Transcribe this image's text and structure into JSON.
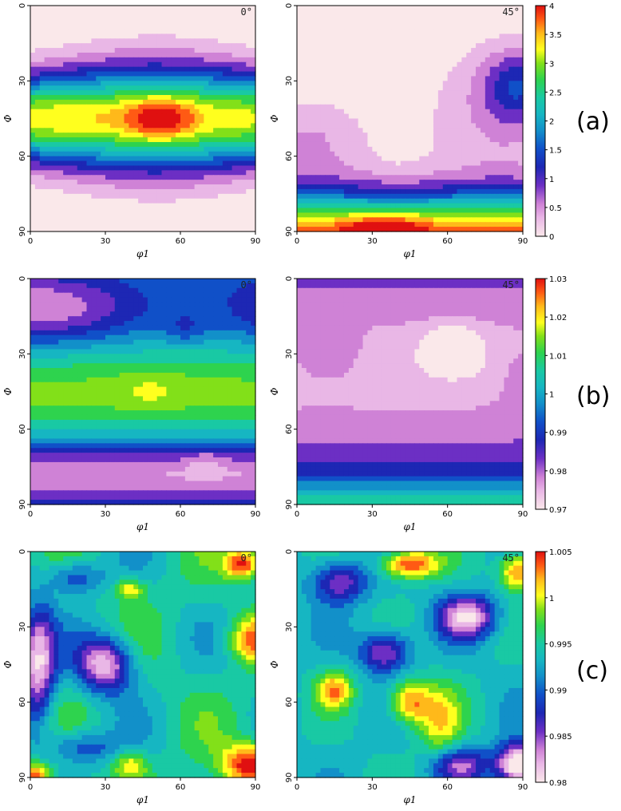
{
  "chart_data": [
    {
      "type": "heatmap",
      "row": "(a)",
      "panel_label": "0°",
      "xlabel": "φ1",
      "ylabel": "Φ",
      "xlim": [
        0,
        90
      ],
      "ylim": [
        0,
        90
      ],
      "xticks": [
        0,
        30,
        60,
        90
      ],
      "yticks": [
        0,
        30,
        60,
        90
      ],
      "colorbar": {
        "min": 0,
        "max": 4,
        "ticks": [
          "0",
          "0.5",
          "1",
          "1.5",
          "2",
          "2.5",
          "3",
          "3.5",
          "4"
        ]
      },
      "features": [
        {
          "x": 45,
          "y": 45,
          "value": 3.2,
          "note": "peak band near Φ=45"
        },
        {
          "x": 52,
          "y": 45,
          "value": 3.8,
          "note": "maximum"
        }
      ]
    },
    {
      "type": "heatmap",
      "row": "(a)",
      "panel_label": "45°",
      "xlabel": "φ1",
      "ylabel": "Φ",
      "xlim": [
        0,
        90
      ],
      "ylim": [
        0,
        90
      ],
      "xticks": [
        0,
        30,
        60,
        90
      ],
      "yticks": [
        0,
        30,
        60,
        90
      ],
      "colorbar": {
        "min": 0,
        "max": 4,
        "ticks": [
          "0",
          "0.5",
          "1",
          "1.5",
          "2",
          "2.5",
          "3",
          "3.5",
          "4"
        ]
      },
      "features": [
        {
          "x": 35,
          "y": 90,
          "value": 3.8,
          "note": "maximum at bottom edge"
        },
        {
          "x": 88,
          "y": 32,
          "value": 1.2,
          "note": "local maximum"
        }
      ]
    },
    {
      "type": "heatmap",
      "row": "(b)",
      "panel_label": "0°",
      "xlabel": "φ1",
      "ylabel": "Φ",
      "xlim": [
        0,
        90
      ],
      "ylim": [
        0,
        90
      ],
      "xticks": [
        0,
        30,
        60,
        90
      ],
      "yticks": [
        0,
        30,
        60,
        90
      ],
      "colorbar": {
        "min": 0.97,
        "max": 1.03,
        "ticks": [
          "0.97",
          "0.98",
          "0.99",
          "1",
          "1.01",
          "1.02",
          "1.03"
        ]
      },
      "features": [
        {
          "x": 48,
          "y": 45,
          "value": 1.015,
          "note": "maximum"
        },
        {
          "x": 62,
          "y": 20,
          "value": 0.977,
          "note": "minimum"
        }
      ]
    },
    {
      "type": "heatmap",
      "row": "(b)",
      "panel_label": "45°",
      "xlabel": "φ1",
      "ylabel": "Φ",
      "xlim": [
        0,
        90
      ],
      "ylim": [
        0,
        90
      ],
      "xticks": [
        0,
        30,
        60,
        90
      ],
      "yticks": [
        0,
        30,
        60,
        90
      ],
      "colorbar": {
        "min": 0.97,
        "max": 1.03,
        "ticks": [
          "0.97",
          "0.98",
          "0.99",
          "1",
          "1.01",
          "1.02",
          "1.03"
        ]
      },
      "features": [
        {
          "x": 62,
          "y": 28,
          "value": 0.971,
          "note": "minimum"
        },
        {
          "x": 45,
          "y": 88,
          "value": 1.012,
          "note": "maximum at bottom edge"
        }
      ]
    },
    {
      "type": "heatmap",
      "row": "(c)",
      "panel_label": "0°",
      "xlabel": "φ1",
      "ylabel": "Φ",
      "xlim": [
        0,
        90
      ],
      "ylim": [
        0,
        90
      ],
      "xticks": [
        0,
        30,
        60,
        90
      ],
      "yticks": [
        0,
        30,
        60,
        90
      ],
      "colorbar": {
        "min": 0.98,
        "max": 1.005,
        "ticks": [
          "0.98",
          "0.985",
          "0.99",
          "0.995",
          "1",
          "1.005"
        ]
      },
      "features": [
        {
          "x": 30,
          "y": 45,
          "value": 0.982,
          "note": "minimum"
        },
        {
          "x": 88,
          "y": 85,
          "value": 1.004,
          "note": "maximum"
        }
      ]
    },
    {
      "type": "heatmap",
      "row": "(c)",
      "panel_label": "45°",
      "xlabel": "φ1",
      "ylabel": "Φ",
      "xlim": [
        0,
        90
      ],
      "ylim": [
        0,
        90
      ],
      "xticks": [
        0,
        30,
        60,
        90
      ],
      "yticks": [
        0,
        30,
        60,
        90
      ],
      "colorbar": {
        "min": 0.98,
        "max": 1.005,
        "ticks": [
          "0.98",
          "0.985",
          "0.99",
          "0.995",
          "1",
          "1.005"
        ]
      },
      "features": [
        {
          "x": 88,
          "y": 85,
          "value": 0.98,
          "note": "minimum"
        },
        {
          "x": 45,
          "y": 5,
          "value": 1.004,
          "note": "maximum"
        }
      ]
    }
  ],
  "row_labels": [
    "(a)",
    "(b)",
    "(c)"
  ],
  "colors": {
    "palette": [
      "#fae8ea",
      "#e9b7e6",
      "#cf82d6",
      "#6c2fc4",
      "#1d27b4",
      "#1050c8",
      "#1290c9",
      "#16b6c2",
      "#19c9a4",
      "#2ed34e",
      "#82e019",
      "#ffff1e",
      "#ffb91a",
      "#ff5a14",
      "#e01010"
    ]
  }
}
